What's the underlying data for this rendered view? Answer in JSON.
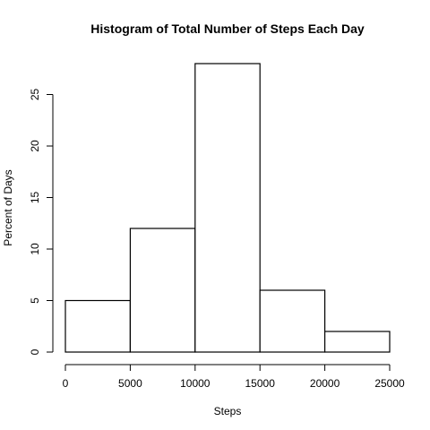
{
  "chart_data": {
    "type": "bar",
    "title": "Histogram of Total Number of Steps Each Day",
    "xlabel": "Steps",
    "ylabel": "Percent of Days",
    "bins": [
      {
        "from": 0,
        "to": 5000,
        "value": 5
      },
      {
        "from": 5000,
        "to": 10000,
        "value": 12
      },
      {
        "from": 10000,
        "to": 15000,
        "value": 28
      },
      {
        "from": 15000,
        "to": 20000,
        "value": 6
      },
      {
        "from": 20000,
        "to": 25000,
        "value": 2
      }
    ],
    "x_ticks": [
      "0",
      "5000",
      "10000",
      "15000",
      "20000",
      "25000"
    ],
    "y_ticks": [
      "0",
      "5",
      "10",
      "15",
      "20",
      "25"
    ],
    "xlim": [
      0,
      25000
    ],
    "ylim": [
      0,
      28
    ],
    "grid": false,
    "legend": "none"
  }
}
